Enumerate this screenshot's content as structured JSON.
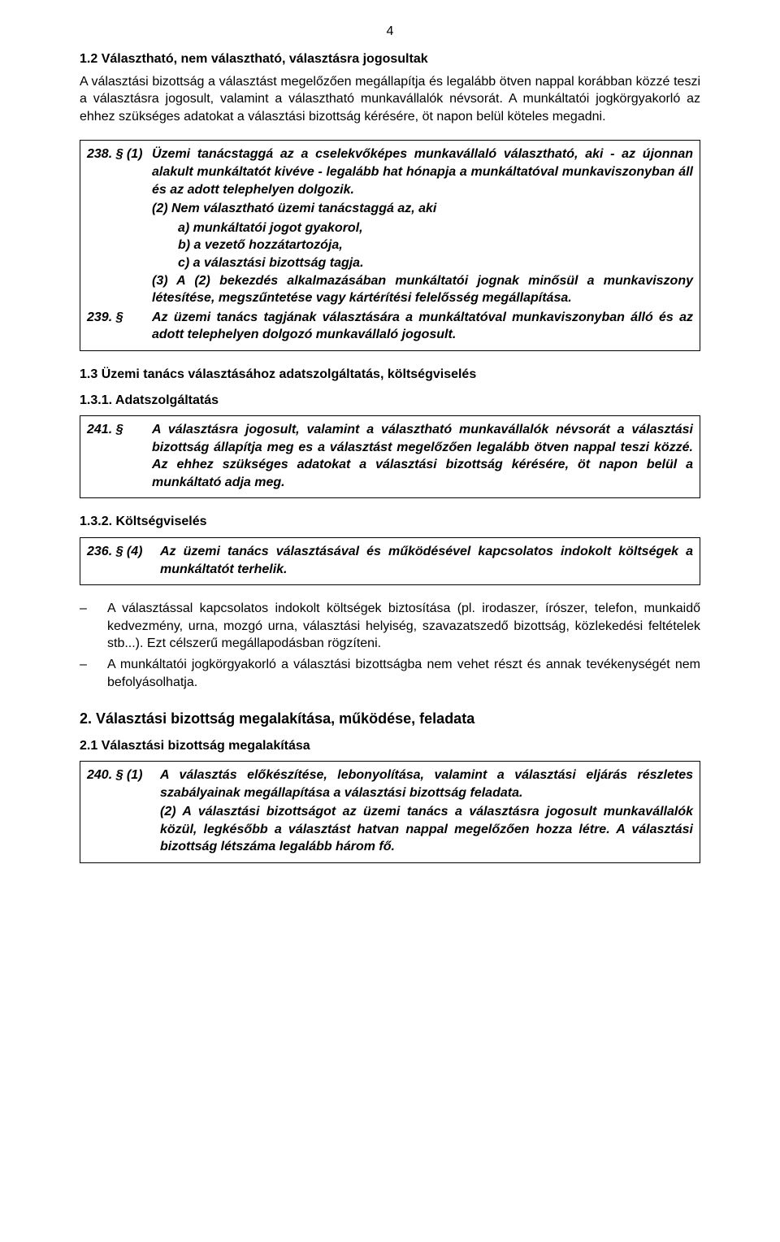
{
  "page_number": "4",
  "section_1_2": {
    "heading": "1.2  Választható, nem választható, választásra jogosultak",
    "paragraph": "A választási bizottság a választást megelőzően megállapítja és legalább ötven nappal korábban közzé teszi a választásra jogosult, valamint a választható munkavállalók névsorát. A munkáltatói jogkörgyakorló az ehhez szükséges adatokat a választási bizottság kérésére, öt napon belül köteles megadni."
  },
  "law_238": {
    "row1_num": "238. § (1)",
    "row1_body": "Üzemi tanácstaggá az a cselekvőképes munkavállaló választható, aki - az újonnan alakult munkáltatót kivéve - legalább hat hónapja a munkáltatóval munkaviszonyban áll és az adott telephelyen dolgozik.",
    "row2_body": "(2) Nem választható üzemi tanácstaggá az, aki",
    "row2_a": "a) munkáltatói jogot gyakorol,",
    "row2_b": "b) a vezető hozzátartozója,",
    "row2_c": "c) a választási bizottság tagja.",
    "row3_body": "(3) A (2) bekezdés alkalmazásában munkáltatói jognak minősül a munkaviszony létesítése, megszűntetése vagy kártérítési felelősség megállapítása.",
    "row4_num": "239. §",
    "row4_body": "Az üzemi tanács tagjának választására a munkáltatóval munkaviszonyban álló és az adott telephelyen dolgozó munkavállaló jogosult."
  },
  "section_1_3": {
    "heading": "1.3  Üzemi tanács választásához adatszolgáltatás, költségviselés",
    "sub_1_heading": "1.3.1. Adatszolgáltatás"
  },
  "law_241": {
    "num": "241. §",
    "body": "A választásra jogosult, valamint a választható munkavállalók névsorát a választási bizottság állapítja meg es a választást megelőzően legalább ötven nappal teszi közzé. Az ehhez szükséges adatokat a választási bizottság kérésére, öt napon belül a munkáltató adja meg."
  },
  "section_1_3_2": {
    "heading": "1.3.2. Költségviselés"
  },
  "law_236": {
    "num": "236. § (4)",
    "body": "Az üzemi tanács választásával és működésével kapcsolatos indokolt költségek a munkáltatót terhelik."
  },
  "bullets": {
    "b1": "A választással kapcsolatos indokolt költségek biztosítása (pl. irodaszer, írószer, telefon, munkaidő kedvezmény, urna, mozgó urna, választási helyiség, szavazatszedő bizottság, közlekedési feltételek stb...). Ezt célszerű megállapodásban rögzíteni.",
    "b2": "A munkáltatói jogkörgyakorló a választási bizottságba nem vehet részt és annak tevékenységét nem befolyásolhatja."
  },
  "section_2": {
    "heading": "2.   Választási bizottság megalakítása, működése, feladata",
    "sub_heading": "2.1  Választási bizottság megalakítása"
  },
  "law_240": {
    "row1_num": "240. § (1)",
    "row1_body": "A választás előkészítése, lebonyolítása, valamint a választási eljárás részletes szabályainak megállapítása a választási bizottság feladata.",
    "row2_body": "(2) A választási bizottságot az üzemi tanács a választásra jogosult munkavállalók közül, legkésőbb a választást hatvan nappal megelőzően hozza létre. A választási bizottság létszáma legalább három fő."
  }
}
